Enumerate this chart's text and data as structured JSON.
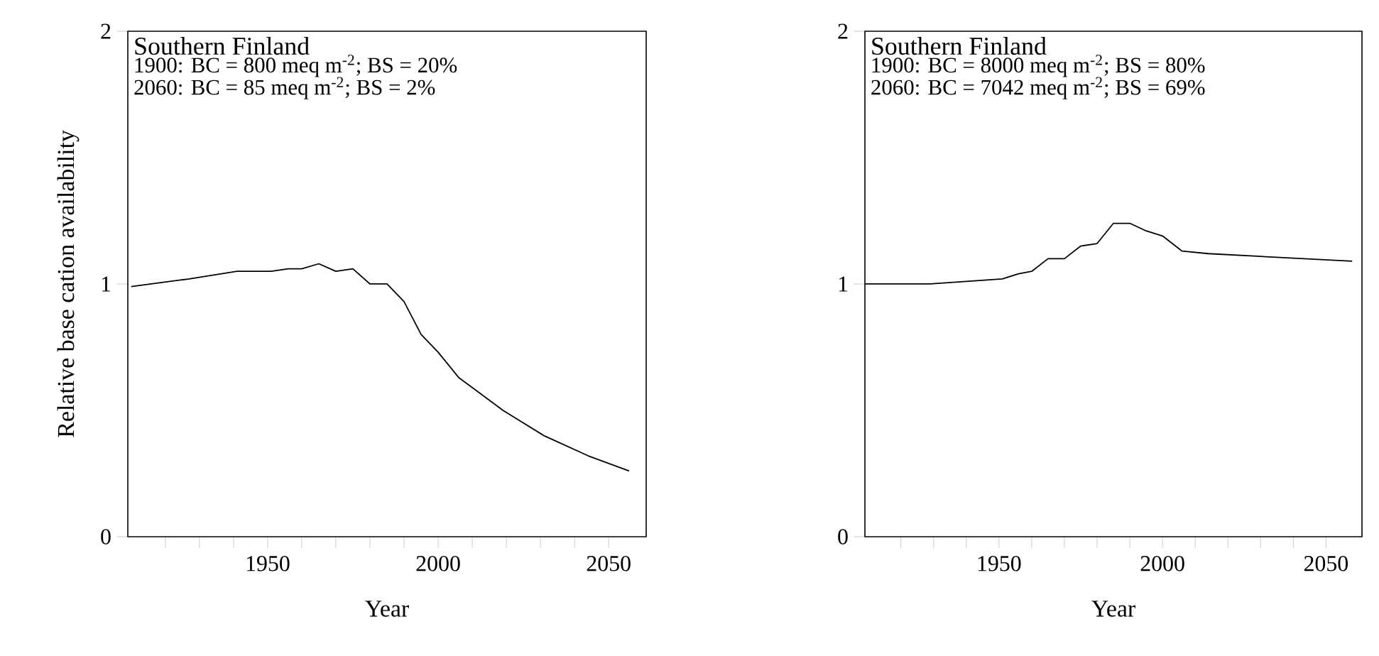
{
  "chart_data": [
    {
      "type": "line",
      "title": "Southern Finland",
      "annotations": [
        "1900: BC = 800 meq m$^{-2}$; BS = 20%",
        "2060: BC = 85 meq m$^{-2}$; BS = 2%"
      ],
      "xlabel": "Year",
      "ylabel": "Relative base cation availability",
      "xlim": [
        1909,
        2061
      ],
      "ylim": [
        0,
        2
      ],
      "xticks": [
        {
          "value": 1920,
          "label": null
        },
        {
          "value": 1930,
          "label": null
        },
        {
          "value": 1940,
          "label": null
        },
        1950,
        {
          "value": 1960,
          "label": null
        },
        {
          "value": 1970,
          "label": null
        },
        {
          "value": 1980,
          "label": null
        },
        {
          "value": 1990,
          "label": null
        },
        2000,
        {
          "value": 2010,
          "label": null
        },
        {
          "value": 2020,
          "label": null
        },
        {
          "value": 2030,
          "label": null
        },
        {
          "value": 2040,
          "label": null
        },
        2050
      ],
      "yticks": [
        0,
        1,
        2
      ],
      "series": [
        {
          "color": "#000000",
          "x": [
            1910,
            1927,
            1941,
            1951,
            1956,
            1960,
            1965,
            1970,
            1975,
            1980,
            1985,
            1990,
            1995,
            2000,
            2006,
            2012,
            2019,
            2031,
            2044,
            2056
          ],
          "values": [
            0.99,
            1.02,
            1.05,
            1.05,
            1.06,
            1.06,
            1.08,
            1.05,
            1.06,
            1.0,
            1.0,
            0.93,
            0.8,
            0.73,
            0.63,
            0.57,
            0.5,
            0.4,
            0.32,
            0.26
          ]
        }
      ]
    },
    {
      "type": "line",
      "title": "Southern Finland",
      "annotations": [
        "1900: BC = 8000 meq m$^{-2}$; BS = 80%",
        "2060: BC = 7042 meq m$^{-2}$; BS = 69%"
      ],
      "xlabel": "Year",
      "xlim": [
        1909,
        2061
      ],
      "ylim": [
        0,
        2
      ],
      "xticks": [
        {
          "value": 1920,
          "label": null
        },
        {
          "value": 1930,
          "label": null
        },
        {
          "value": 1940,
          "label": null
        },
        1950,
        {
          "value": 1960,
          "label": null
        },
        {
          "value": 1970,
          "label": null
        },
        {
          "value": 1980,
          "label": null
        },
        {
          "value": 1990,
          "label": null
        },
        2000,
        {
          "value": 2010,
          "label": null
        },
        {
          "value": 2020,
          "label": null
        },
        {
          "value": 2030,
          "label": null
        },
        {
          "value": 2040,
          "label": null
        },
        2050
      ],
      "yticks": [
        0,
        1,
        2
      ],
      "series": [
        {
          "color": "#000000",
          "x": [
            1909,
            1929,
            1951,
            1956,
            1960,
            1965,
            1970,
            1975,
            1980,
            1985,
            1990,
            1995,
            2000,
            2006,
            2014,
            2058
          ],
          "values": [
            1.0,
            1.0,
            1.02,
            1.04,
            1.05,
            1.1,
            1.1,
            1.15,
            1.16,
            1.24,
            1.24,
            1.21,
            1.19,
            1.13,
            1.12,
            1.09
          ]
        }
      ]
    }
  ]
}
